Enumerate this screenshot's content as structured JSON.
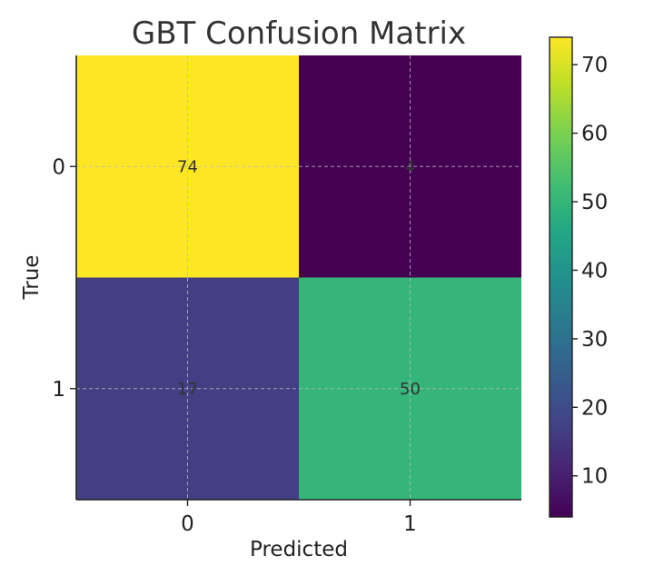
{
  "chart_data": {
    "type": "heatmap",
    "title": "GBT Confusion Matrix",
    "xlabel": "Predicted",
    "ylabel": "True",
    "x_categories": [
      "0",
      "1"
    ],
    "y_categories": [
      "0",
      "1"
    ],
    "values": [
      [
        74,
        4
      ],
      [
        17,
        50
      ]
    ],
    "colormap": "viridis",
    "colorbar": {
      "range": [
        4,
        74
      ],
      "ticks": [
        10,
        20,
        30,
        40,
        50,
        60,
        70
      ],
      "tick_labels": [
        "10",
        "20",
        "30",
        "40",
        "50",
        "60",
        "70"
      ]
    },
    "grid": true
  }
}
